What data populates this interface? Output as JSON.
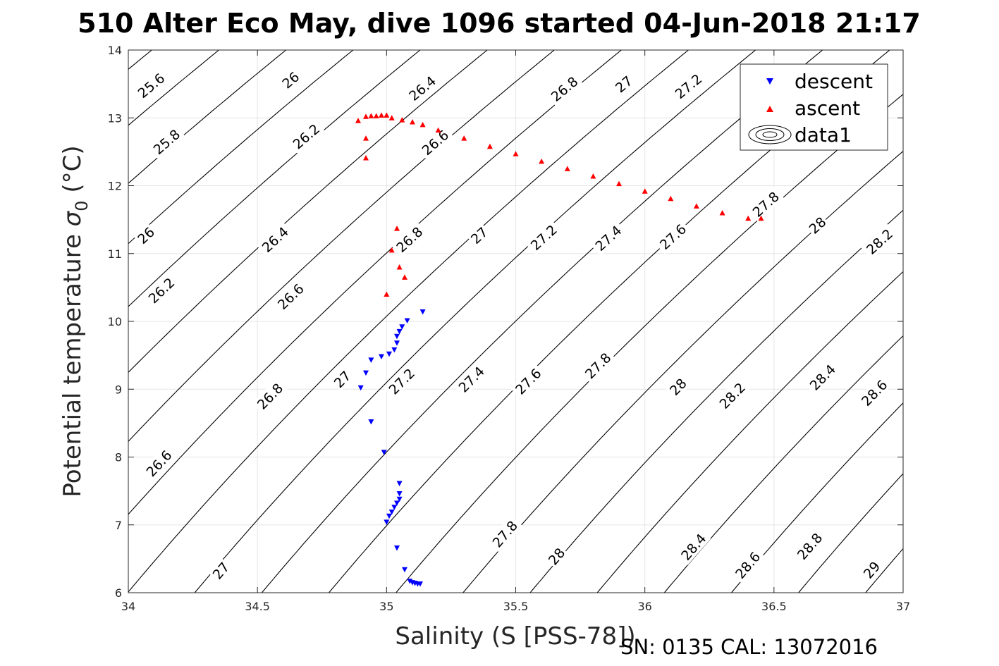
{
  "title": "510 Alter Eco May, dive 1096 started 04-Jun-2018 21:17",
  "footer": "SN: 0135  CAL: 13072016",
  "chart_data": {
    "type": "scatter",
    "xlabel": "Salinity (S [PSS-78])",
    "ylabel_main": "Potential temperature ",
    "ylabel_sigma": "σ",
    "ylabel_sub": "0",
    "ylabel_unit": " (°C)",
    "xlim": [
      34,
      37
    ],
    "ylim": [
      6,
      14
    ],
    "x_ticks": [
      34,
      34.5,
      35,
      35.5,
      36,
      36.5,
      37
    ],
    "x_tick_labels": [
      "34",
      "34.5",
      "35",
      "35.5",
      "36",
      "36.5",
      "37"
    ],
    "y_ticks": [
      6,
      7,
      8,
      9,
      10,
      11,
      12,
      13,
      14
    ],
    "y_tick_labels": [
      "6",
      "7",
      "8",
      "9",
      "10",
      "11",
      "12",
      "13",
      "14"
    ],
    "grid": true,
    "legend_position": "top-right",
    "legend": [
      "descent",
      "ascent",
      "data1"
    ],
    "colors": {
      "descent": "#0000ff",
      "ascent": "#ff0000",
      "contour": "#000000",
      "grid": "#e6e6e6"
    },
    "contour_levels": [
      25.6,
      25.8,
      26,
      26.2,
      26.4,
      26.6,
      26.8,
      27,
      27.2,
      27.4,
      27.6,
      27.8,
      28,
      28.2,
      28.4,
      28.6,
      28.8,
      29
    ],
    "contour_labels": [
      {
        "text": "25.6",
        "x": 34.09,
        "y": 13.47
      },
      {
        "text": "26",
        "x": 34.63,
        "y": 13.55
      },
      {
        "text": "26.4",
        "x": 35.14,
        "y": 13.43
      },
      {
        "text": "26.8",
        "x": 35.69,
        "y": 13.42
      },
      {
        "text": "27",
        "x": 35.92,
        "y": 13.49
      },
      {
        "text": "27.2",
        "x": 36.17,
        "y": 13.46
      },
      {
        "text": "25.8",
        "x": 34.15,
        "y": 12.64
      },
      {
        "text": "26.2",
        "x": 34.69,
        "y": 12.72
      },
      {
        "text": "26.6",
        "x": 35.19,
        "y": 12.63
      },
      {
        "text": "27.8",
        "x": 36.47,
        "y": 11.72
      },
      {
        "text": "26",
        "x": 34.07,
        "y": 11.26
      },
      {
        "text": "26.4",
        "x": 34.57,
        "y": 11.2
      },
      {
        "text": "26.8",
        "x": 35.09,
        "y": 11.2
      },
      {
        "text": "27",
        "x": 35.36,
        "y": 11.26
      },
      {
        "text": "27.2",
        "x": 35.61,
        "y": 11.23
      },
      {
        "text": "27.4",
        "x": 35.86,
        "y": 11.22
      },
      {
        "text": "27.6",
        "x": 36.11,
        "y": 11.24
      },
      {
        "text": "28",
        "x": 36.67,
        "y": 11.41
      },
      {
        "text": "28.2",
        "x": 36.91,
        "y": 11.17
      },
      {
        "text": "26.2",
        "x": 34.13,
        "y": 10.45
      },
      {
        "text": "26.6",
        "x": 34.63,
        "y": 10.36
      },
      {
        "text": "27",
        "x": 34.83,
        "y": 9.14
      },
      {
        "text": "27.2",
        "x": 35.06,
        "y": 9.11
      },
      {
        "text": "27.4",
        "x": 35.33,
        "y": 9.14
      },
      {
        "text": "27.6",
        "x": 35.55,
        "y": 9.11
      },
      {
        "text": "27.8",
        "x": 35.82,
        "y": 9.34
      },
      {
        "text": "28",
        "x": 36.13,
        "y": 9.03
      },
      {
        "text": "28.2",
        "x": 36.34,
        "y": 8.9
      },
      {
        "text": "28.4",
        "x": 36.69,
        "y": 9.17
      },
      {
        "text": "28.6",
        "x": 36.89,
        "y": 8.94
      },
      {
        "text": "26.8",
        "x": 34.55,
        "y": 8.89
      },
      {
        "text": "26.6",
        "x": 34.12,
        "y": 7.9
      },
      {
        "text": "27.8",
        "x": 35.46,
        "y": 6.86
      },
      {
        "text": "28",
        "x": 35.66,
        "y": 6.53
      },
      {
        "text": "28.4",
        "x": 36.19,
        "y": 6.67
      },
      {
        "text": "28.6",
        "x": 36.4,
        "y": 6.4
      },
      {
        "text": "28.8",
        "x": 36.64,
        "y": 6.68
      },
      {
        "text": "29",
        "x": 36.88,
        "y": 6.33
      },
      {
        "text": "27",
        "x": 34.36,
        "y": 6.32
      }
    ],
    "series": [
      {
        "name": "descent",
        "marker": "triangle-down",
        "x": [
          35.14,
          35.08,
          35.06,
          35.05,
          35.04,
          35.04,
          35.03,
          35.01,
          34.98,
          34.94,
          34.92,
          34.9,
          34.94,
          34.99,
          35.05,
          35.05,
          35.05,
          35.04,
          35.03,
          35.02,
          35.01,
          35.0,
          35.04,
          35.07,
          35.09,
          35.1,
          35.11,
          35.12,
          35.13
        ],
        "y": [
          10.14,
          10.01,
          9.92,
          9.85,
          9.78,
          9.68,
          9.58,
          9.52,
          9.48,
          9.43,
          9.24,
          9.02,
          8.52,
          8.07,
          7.61,
          7.46,
          7.38,
          7.32,
          7.26,
          7.19,
          7.13,
          7.04,
          6.66,
          6.34,
          6.17,
          6.15,
          6.14,
          6.13,
          6.13
        ]
      },
      {
        "name": "ascent",
        "marker": "triangle-up",
        "x": [
          34.89,
          34.92,
          34.94,
          34.96,
          34.98,
          35.0,
          35.02,
          35.06,
          35.1,
          35.14,
          35.2,
          35.3,
          35.4,
          35.5,
          35.6,
          35.7,
          35.8,
          35.9,
          36.0,
          36.1,
          36.2,
          36.3,
          36.4,
          36.45,
          34.92,
          34.92,
          35.04,
          35.02,
          35.05,
          35.07,
          35.0
        ],
        "y": [
          12.96,
          13.02,
          13.03,
          13.03,
          13.04,
          13.04,
          13.0,
          12.97,
          12.94,
          12.9,
          12.82,
          12.7,
          12.58,
          12.47,
          12.36,
          12.25,
          12.14,
          12.03,
          11.92,
          11.81,
          11.7,
          11.6,
          11.52,
          11.52,
          12.7,
          12.41,
          11.37,
          11.05,
          10.8,
          10.65,
          10.4
        ]
      }
    ]
  }
}
